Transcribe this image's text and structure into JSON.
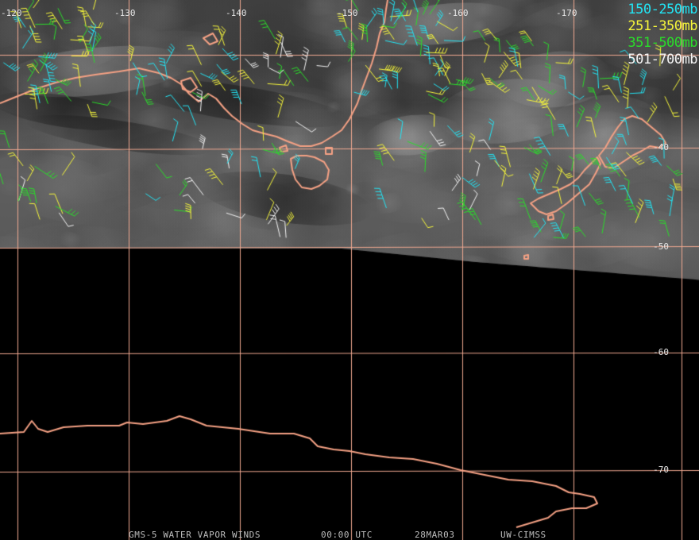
{
  "colors": {
    "grid": "#f0a890",
    "coast": "#f5a184",
    "level_150_250": "#22e4f4",
    "level_251_350": "#f6f63a",
    "level_351_500": "#2adc2a",
    "level_501_700": "#f4f4f4"
  },
  "longitude_labels": [
    "-120",
    "-130",
    "-140",
    "-150",
    "-160",
    "-170"
  ],
  "latitude_labels": [
    "-40",
    "-50",
    "-60",
    "-70"
  ],
  "legend": [
    {
      "label": "150-250mb",
      "color": "#22e4f4"
    },
    {
      "label": "251-350mb",
      "color": "#f6f63a"
    },
    {
      "label": "351-500mb",
      "color": "#2adc2a"
    },
    {
      "label": "501-700mb",
      "color": "#f4f4f4"
    }
  ],
  "footer": {
    "product": "GMS-5 WATER VAPOR WINDS",
    "time": "00:00 UTC",
    "date": "28MAR03",
    "credit": "UW-CIMSS"
  }
}
